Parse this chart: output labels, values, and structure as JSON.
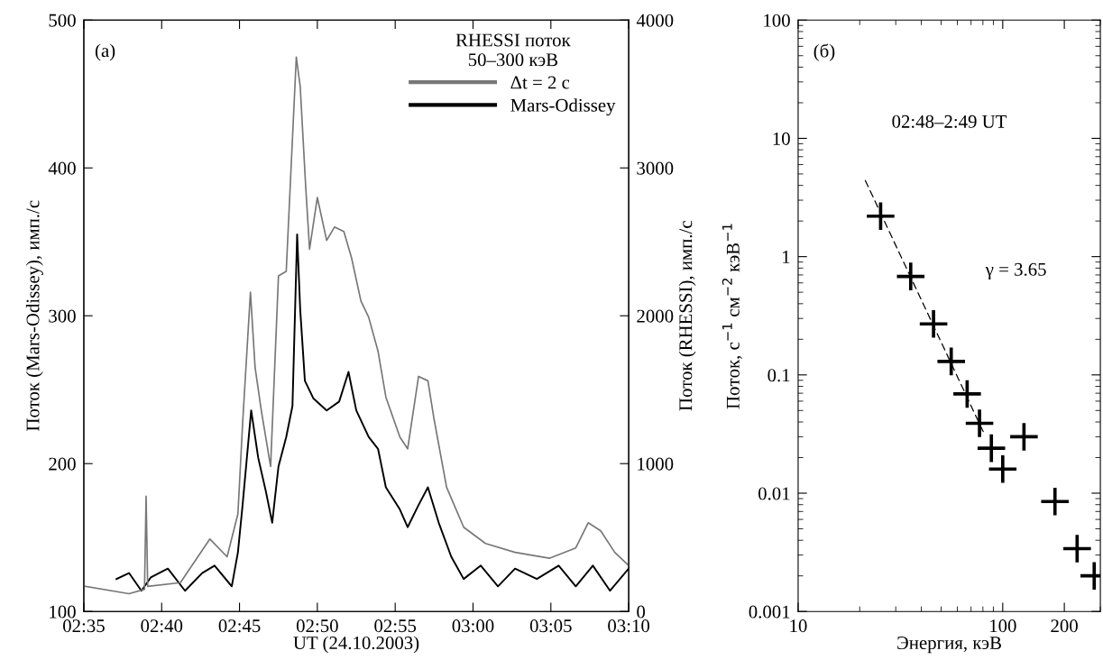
{
  "chart_data": [
    {
      "type": "line",
      "xlabel": "UT (24.10.2003)",
      "ylabel": "Поток (Mars-Odissey), имп./с",
      "y2label": "Поток (RHESSI), имп./с",
      "legend_title": "RHESSI поток\n50–300 кэВ",
      "legend": "top right",
      "annotations": [
        "(a)"
      ],
      "xlim": [
        2.58333,
        3.16667
      ],
      "xticks": [
        {
          "value": 2.58333,
          "label": "02:35"
        },
        {
          "value": 2.66667,
          "label": "02:40"
        },
        {
          "value": 2.75,
          "label": "02:45"
        },
        {
          "value": 2.83333,
          "label": "02:50"
        },
        {
          "value": 2.91667,
          "label": "02:55"
        },
        {
          "value": 3.0,
          "label": "03:00"
        },
        {
          "value": 3.08333,
          "label": "03:05"
        },
        {
          "value": 3.16667,
          "label": "03:10"
        }
      ],
      "ylim": [
        100,
        500
      ],
      "yticks": [
        100,
        200,
        300,
        400,
        500
      ],
      "y2lim": [
        0,
        4000
      ],
      "y2ticks": [
        0,
        1000,
        2000,
        3000,
        4000
      ],
      "series": [
        {
          "name": "Δt = 2 с",
          "color": "#777777",
          "axis": "y2",
          "x": [
            2.585,
            2.6317,
            2.6483,
            2.65,
            2.6517,
            2.6867,
            2.7183,
            2.7367,
            2.7483,
            2.7533,
            2.7617,
            2.7667,
            2.7733,
            2.7833,
            2.7917,
            2.8,
            2.8108,
            2.815,
            2.8208,
            2.825,
            2.8333,
            2.8433,
            2.8517,
            2.8617,
            2.87,
            2.88,
            2.8883,
            2.8983,
            2.9067,
            2.9217,
            2.93,
            2.9417,
            2.9517,
            2.9583,
            2.9717,
            2.99,
            3.0133,
            3.045,
            3.0817,
            3.11,
            3.1233,
            3.1367,
            3.1517,
            3.16667
          ],
          "values": [
            170,
            120,
            150,
            780,
            170,
            195,
            490,
            370,
            660,
            1270,
            2160,
            1650,
            1360,
            980,
            2270,
            2300,
            3750,
            3550,
            2880,
            2450,
            2800,
            2510,
            2600,
            2570,
            2390,
            2100,
            1990,
            1760,
            1450,
            1180,
            1100,
            1590,
            1560,
            1300,
            840,
            570,
            460,
            400,
            360,
            430,
            600,
            545,
            400,
            310
          ]
        },
        {
          "name": "Mars-Odissey",
          "color": "#000000",
          "x": [
            2.6183,
            2.6317,
            2.645,
            2.655,
            2.6733,
            2.6917,
            2.71,
            2.7233,
            2.7417,
            2.7483,
            2.7533,
            2.7625,
            2.77,
            2.7783,
            2.785,
            2.7917,
            2.8,
            2.8067,
            2.8117,
            2.815,
            2.82,
            2.8292,
            2.8433,
            2.8567,
            2.8667,
            2.875,
            2.8883,
            2.8983,
            2.9067,
            2.9217,
            2.93,
            2.9417,
            2.9517,
            2.9633,
            2.9767,
            2.99,
            3.0083,
            3.0267,
            3.045,
            3.0683,
            3.0917,
            3.11,
            3.1283,
            3.1467,
            3.16667
          ],
          "values": [
            122,
            126,
            114,
            123,
            129,
            114,
            126,
            131,
            117,
            140,
            172,
            236,
            204,
            181,
            160,
            198,
            218,
            239,
            355,
            304,
            256,
            244,
            236,
            242,
            262,
            236,
            218,
            210,
            184,
            169,
            157,
            172,
            184,
            160,
            137,
            122,
            131,
            117,
            129,
            122,
            131,
            117,
            131,
            114,
            129
          ]
        }
      ]
    },
    {
      "type": "scatter",
      "log": "xy",
      "xlabel": "Энергия, кэВ",
      "ylabel": "Поток, с$^{−1}$ см$^{−2}$ кэВ$^{−1}$",
      "annotations": [
        "(б)",
        "02:48–2:49 UT",
        "γ = 3.65"
      ],
      "xlim": [
        10,
        300
      ],
      "xticks": [
        10,
        100,
        200
      ],
      "ylim": [
        0.001,
        100
      ],
      "yticks": [
        0.001,
        0.01,
        0.1,
        1,
        10,
        100
      ],
      "series": [
        {
          "marker": "cross",
          "color": "#000000",
          "x": [
            25.3,
            35.5,
            45.9,
            56,
            67,
            77,
            88,
            100,
            127,
            180,
            231,
            280
          ],
          "values": [
            2.2,
            0.68,
            0.27,
            0.13,
            0.069,
            0.039,
            0.024,
            0.016,
            0.03,
            0.0085,
            0.0034,
            0.002
          ]
        },
        {
          "type": "line",
          "line_style": "dashed",
          "color": "#000000",
          "x": [
            21.3,
            81
          ],
          "values": [
            4.4,
            0.032
          ]
        }
      ]
    }
  ]
}
